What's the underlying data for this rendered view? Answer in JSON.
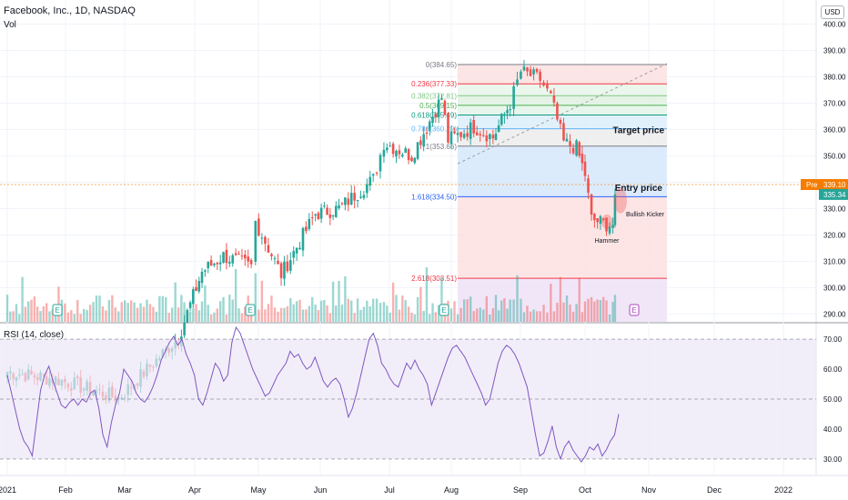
{
  "header": {
    "title": "Facebook, Inc., 1D, NASDAQ",
    "volume_label": "Vol",
    "currency": "USD"
  },
  "rsi_panel": {
    "label": "RSI (14, close)"
  },
  "colors": {
    "up": "#26a69a",
    "down": "#ef5350",
    "rsi_line": "#7e57c2",
    "rsi_band": "#ede7f6",
    "pre_market": "#f57c00",
    "last_price": "#26a69a"
  },
  "chart_data": [
    {
      "type": "candlestick",
      "title": "Facebook, Inc., 1D, NASDAQ",
      "price_axis": [
        290,
        300,
        310,
        320,
        330,
        340,
        350,
        360,
        370,
        380,
        390,
        400
      ],
      "price_axis_labels": [
        "290.00",
        "300.00",
        "310.00",
        "320.00",
        "330.00",
        "340.00",
        "350.00",
        "360.00",
        "370.00",
        "380.00",
        "390.00",
        "400.00"
      ],
      "ylim": [
        287,
        405
      ],
      "time_axis": [
        "2021",
        "Feb",
        "Mar",
        "Apr",
        "May",
        "Jun",
        "Jul",
        "Aug",
        "Sep",
        "Oct",
        "Nov",
        "Dec",
        "2022"
      ],
      "series_approx_close": [
        {
          "date": "2021-01-04",
          "close": 268
        },
        {
          "date": "2021-01-28",
          "close": 265
        },
        {
          "date": "2021-02-25",
          "close": 258
        },
        {
          "date": "2021-03-25",
          "close": 281
        },
        {
          "date": "2021-04-05",
          "close": 306
        },
        {
          "date": "2021-04-15",
          "close": 312
        },
        {
          "date": "2021-04-28",
          "close": 308
        },
        {
          "date": "2021-04-30",
          "close": 325
        },
        {
          "date": "2021-05-12",
          "close": 305
        },
        {
          "date": "2021-05-28",
          "close": 328
        },
        {
          "date": "2021-06-08",
          "close": 330
        },
        {
          "date": "2021-06-24",
          "close": 341
        },
        {
          "date": "2021-06-29",
          "close": 355
        },
        {
          "date": "2021-07-12",
          "close": 350
        },
        {
          "date": "2021-07-26",
          "close": 372
        },
        {
          "date": "2021-07-29",
          "close": 356
        },
        {
          "date": "2021-08-10",
          "close": 361
        },
        {
          "date": "2021-08-19",
          "close": 357
        },
        {
          "date": "2021-08-27",
          "close": 370
        },
        {
          "date": "2021-09-01",
          "close": 382
        },
        {
          "date": "2021-09-10",
          "close": 379
        },
        {
          "date": "2021-09-15",
          "close": 372
        },
        {
          "date": "2021-09-21",
          "close": 355
        },
        {
          "date": "2021-09-27",
          "close": 353
        },
        {
          "date": "2021-10-01",
          "close": 343
        },
        {
          "date": "2021-10-04",
          "close": 326
        },
        {
          "date": "2021-10-11",
          "close": 324
        },
        {
          "date": "2021-10-14",
          "close": 324
        },
        {
          "date": "2021-10-15",
          "close": 335.34
        }
      ],
      "last_price": {
        "label": "335.34",
        "value": 335.34
      },
      "pre_market": {
        "label": "Pre",
        "value_label": "339.10",
        "value": 339.1
      },
      "fibonacci": [
        {
          "label": "0(384.65)",
          "level": 384.65
        },
        {
          "label": "0.236(377.33)",
          "level": 377.33
        },
        {
          "label": "0.382(372.81)",
          "level": 372.81
        },
        {
          "label": "0.5(369.15)",
          "level": 369.15
        },
        {
          "label": "0.618(365.49)",
          "level": 365.49
        },
        {
          "label": "0.786(360.29)",
          "level": 360.29
        },
        {
          "label": "1(353.66)",
          "level": 353.66
        },
        {
          "label": "1.618(334.50)",
          "level": 334.5
        },
        {
          "label": "2.618(303.51)",
          "level": 303.51
        }
      ],
      "annotations": [
        {
          "text": "Target price",
          "price": 360
        },
        {
          "text": "Entry price",
          "price": 338
        },
        {
          "text": "Bullish Kicker",
          "price": 328
        },
        {
          "text": "Hammer",
          "price": 318
        }
      ],
      "earnings_markers": [
        "E",
        "E",
        "E",
        "E"
      ]
    },
    {
      "type": "line",
      "title": "RSI (14, close)",
      "y_axis_labels": [
        "30.00",
        "40.00",
        "50.00",
        "60.00",
        "70.00"
      ],
      "ylim": [
        26,
        74
      ],
      "band": [
        30,
        70
      ],
      "midline": 50,
      "values": [
        58,
        52,
        46,
        40,
        36,
        34,
        31,
        42,
        53,
        58,
        61,
        56,
        52,
        48,
        47,
        49,
        50,
        48,
        50,
        49,
        52,
        53,
        47,
        38,
        34,
        42,
        48,
        52,
        60,
        58,
        56,
        52,
        50,
        49,
        51,
        54,
        58,
        63,
        66,
        69,
        71,
        68,
        70,
        65,
        62,
        58,
        50,
        48,
        52,
        57,
        62,
        60,
        56,
        58,
        69,
        74,
        72,
        68,
        64,
        60,
        57,
        54,
        51,
        52,
        55,
        58,
        60,
        62,
        66,
        64,
        65,
        62,
        60,
        61,
        64,
        60,
        56,
        54,
        56,
        57,
        55,
        50,
        44,
        47,
        52,
        58,
        64,
        70,
        72,
        68,
        62,
        60,
        57,
        55,
        54,
        58,
        62,
        60,
        63,
        60,
        58,
        55,
        48,
        52,
        56,
        60,
        64,
        67,
        68,
        66,
        64,
        61,
        58,
        55,
        52,
        48,
        50,
        56,
        62,
        66,
        68,
        67,
        65,
        62,
        58,
        54,
        46,
        38,
        31,
        32,
        36,
        41,
        34,
        30,
        34,
        36,
        33,
        31,
        29,
        31,
        34,
        33,
        35,
        31,
        33,
        36,
        38,
        45
      ]
    }
  ]
}
